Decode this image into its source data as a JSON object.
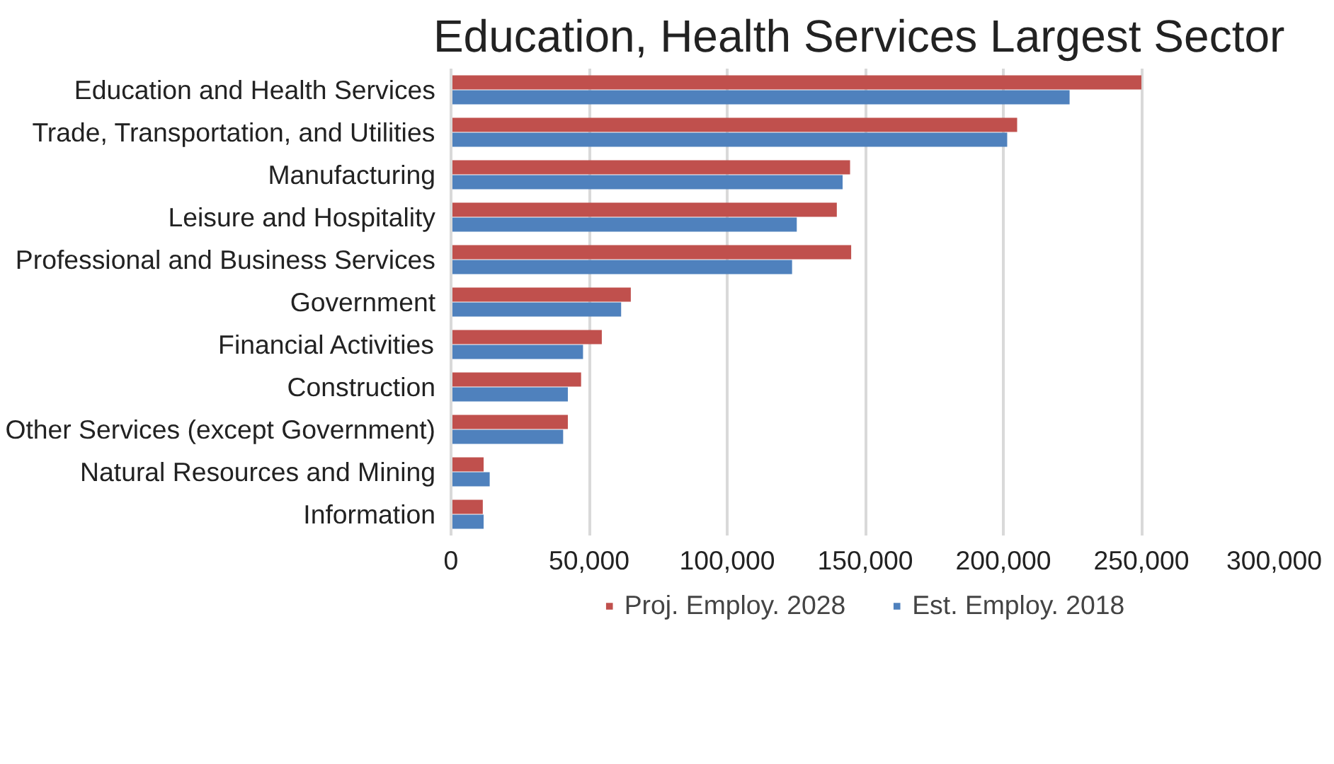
{
  "chart_data": {
    "type": "bar",
    "orientation": "horizontal",
    "title": "Education, Health Services  Largest Sector",
    "categories": [
      "Education and Health Services",
      "Trade, Transportation, and Utilities",
      "Manufacturing",
      "Leisure and Hospitality",
      "Professional and Business Services",
      "Government",
      "Financial Activities",
      "Construction",
      "Other Services (except Government)",
      "Natural Resources and Mining",
      "Information"
    ],
    "series": [
      {
        "name": "Proj. Employ. 2028",
        "color": "#c0504d",
        "values": [
          250000,
          205000,
          144500,
          139700,
          144900,
          65100,
          54600,
          47100,
          42300,
          11800,
          11500
        ]
      },
      {
        "name": "Est. Employ. 2018",
        "color": "#4f81bd",
        "values": [
          224000,
          201400,
          141800,
          125200,
          123500,
          61600,
          47800,
          42300,
          40600,
          14000,
          11800
        ]
      }
    ],
    "xlim": [
      0,
      300000
    ],
    "xticks": [
      {
        "value": 0,
        "label": "0"
      },
      {
        "value": 50000,
        "label": "50,000"
      },
      {
        "value": 100000,
        "label": "100,000"
      },
      {
        "value": 150000,
        "label": "150,000"
      },
      {
        "value": 200000,
        "label": "200,000"
      },
      {
        "value": 250000,
        "label": "250,000"
      },
      {
        "value": 300000,
        "label": "300,000"
      }
    ],
    "grid": "x",
    "legend": "bottom"
  }
}
